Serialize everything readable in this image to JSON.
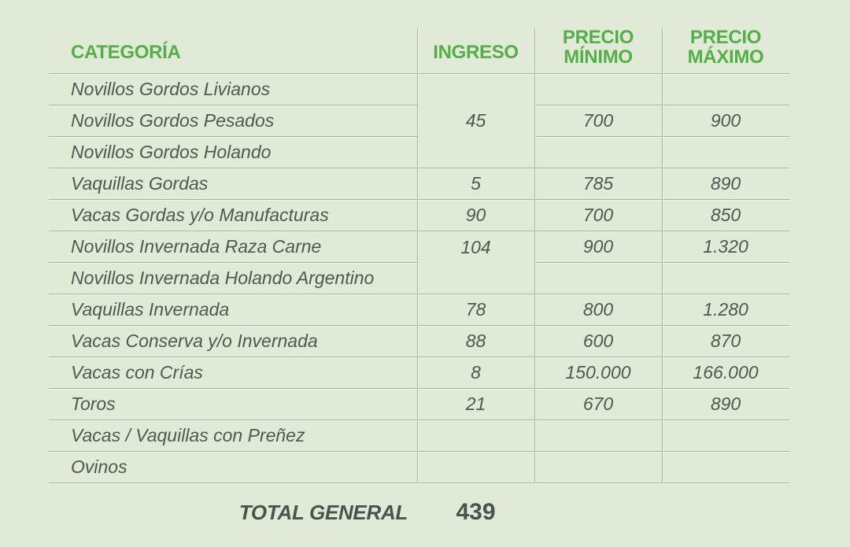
{
  "colors": {
    "background": "#e0ead6",
    "header_green": "#56ae48",
    "text": "#4d5952",
    "line": "#a8b3a0"
  },
  "table": {
    "headers": {
      "category": "CATEGORÍA",
      "ingreso": "INGRESO",
      "precio_minimo_l1": "PRECIO",
      "precio_minimo_l2": "MÍNIMO",
      "precio_maximo_l1": "PRECIO",
      "precio_maximo_l2": "MÁXIMO"
    },
    "merged_ingreso": {
      "novillos_gordos": "45",
      "novillos_invernada": "104"
    },
    "rows": [
      {
        "category": "Novillos Gordos Livianos",
        "min": "",
        "max": ""
      },
      {
        "category": "Novillos Gordos Pesados",
        "min": "700",
        "max": "900"
      },
      {
        "category": "Novillos Gordos Holando",
        "min": "",
        "max": ""
      },
      {
        "category": "Vaquillas Gordas",
        "ingreso": "5",
        "min": "785",
        "max": "890"
      },
      {
        "category": "Vacas Gordas y/o Manufacturas",
        "ingreso": "90",
        "min": "700",
        "max": "850"
      },
      {
        "category": "Novillos Invernada Raza Carne",
        "min": "900",
        "max": "1.320"
      },
      {
        "category": "Novillos Invernada Holando Argentino",
        "min": "",
        "max": ""
      },
      {
        "category": "Vaquillas Invernada",
        "ingreso": "78",
        "min": "800",
        "max": "1.280"
      },
      {
        "category": "Vacas Conserva y/o Invernada",
        "ingreso": "88",
        "min": "600",
        "max": "870"
      },
      {
        "category": "Vacas con Crías",
        "ingreso": "8",
        "min": "150.000",
        "max": "166.000"
      },
      {
        "category": "Toros",
        "ingreso": "21",
        "min": "670",
        "max": "890"
      },
      {
        "category": "Vacas / Vaquillas con Preñez",
        "ingreso": "",
        "min": "",
        "max": ""
      },
      {
        "category": "Ovinos",
        "ingreso": "",
        "min": "",
        "max": ""
      }
    ],
    "footer": {
      "label": "TOTAL GENERAL",
      "value": "439"
    }
  },
  "chart_data": {
    "type": "table",
    "title": "",
    "columns": [
      "CATEGORÍA",
      "INGRESO",
      "PRECIO MÍNIMO",
      "PRECIO MÁXIMO"
    ],
    "rows": [
      [
        "Novillos Gordos Livianos",
        "45",
        "",
        ""
      ],
      [
        "Novillos Gordos Pesados",
        "45",
        "700",
        "900"
      ],
      [
        "Novillos Gordos Holando",
        "45",
        "",
        ""
      ],
      [
        "Vaquillas Gordas",
        "5",
        "785",
        "890"
      ],
      [
        "Vacas Gordas y/o Manufacturas",
        "90",
        "700",
        "850"
      ],
      [
        "Novillos Invernada Raza Carne",
        "104",
        "900",
        "1.320"
      ],
      [
        "Novillos Invernada Holando Argentino",
        "104",
        "",
        ""
      ],
      [
        "Vaquillas Invernada",
        "78",
        "800",
        "1.280"
      ],
      [
        "Vacas Conserva y/o Invernada",
        "88",
        "600",
        "870"
      ],
      [
        "Vacas con Crías",
        "8",
        "150.000",
        "166.000"
      ],
      [
        "Toros",
        "21",
        "670",
        "890"
      ],
      [
        "Vacas / Vaquillas con Preñez",
        "",
        "",
        ""
      ],
      [
        "Ovinos",
        "",
        "",
        ""
      ]
    ],
    "merged_cells": [
      {
        "column": "INGRESO",
        "row_indices": [
          0,
          1,
          2
        ],
        "value": "45",
        "value_align": "middle"
      },
      {
        "column": "INGRESO",
        "row_indices": [
          5,
          6
        ],
        "value": "104",
        "value_align": "top"
      }
    ],
    "total": {
      "label": "TOTAL GENERAL",
      "value": "439"
    }
  }
}
